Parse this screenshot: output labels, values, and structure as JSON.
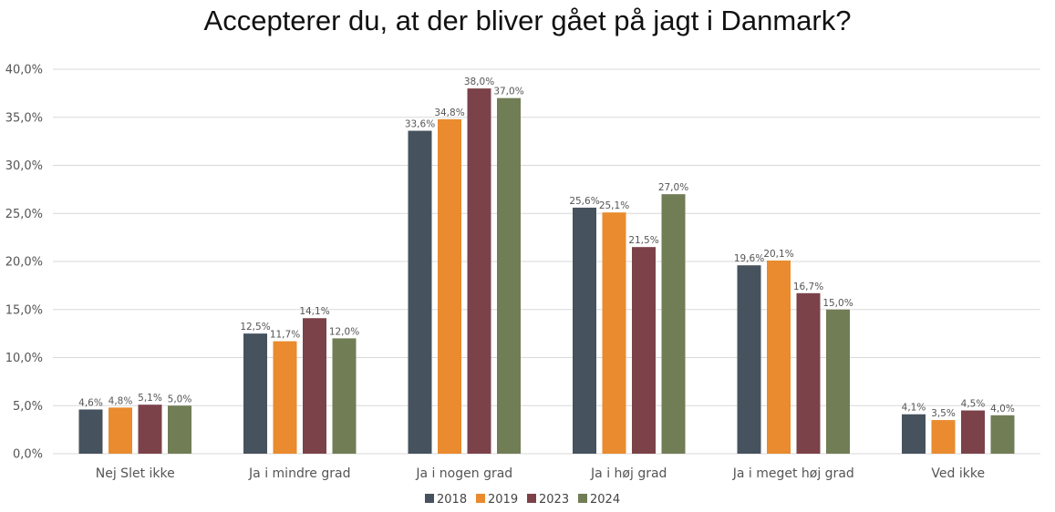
{
  "chart_data": {
    "type": "bar",
    "title": "Accepterer du, at der bliver gået på jagt i Danmark?",
    "categories": [
      "Nej Slet ikke",
      "Ja i mindre grad",
      "Ja i nogen grad",
      "Ja i høj grad",
      "Ja i meget høj grad",
      "Ved ikke"
    ],
    "series": [
      {
        "name": "2018",
        "color": "#46535e",
        "values": [
          4.6,
          12.5,
          33.6,
          25.6,
          19.6,
          4.1
        ],
        "labels": [
          "4,6%",
          "12,5%",
          "33,6%",
          "25,6%",
          "19,6%",
          "4,1%"
        ]
      },
      {
        "name": "2019",
        "color": "#e98b2e",
        "values": [
          4.8,
          11.7,
          34.8,
          25.1,
          20.1,
          3.5
        ],
        "labels": [
          "4,8%",
          "11,7%",
          "34,8%",
          "25,1%",
          "20,1%",
          "3,5%"
        ]
      },
      {
        "name": "2023",
        "color": "#7c4249",
        "values": [
          5.1,
          14.1,
          38.0,
          21.5,
          16.7,
          4.5
        ],
        "labels": [
          "5,1%",
          "14,1%",
          "38,0%",
          "21,5%",
          "16,7%",
          "4,5%"
        ]
      },
      {
        "name": "2024",
        "color": "#717d55",
        "values": [
          5.0,
          12.0,
          37.0,
          27.0,
          15.0,
          4.0
        ],
        "labels": [
          "5,0%",
          "12,0%",
          "37,0%",
          "27,0%",
          "15,0%",
          "4,0%"
        ]
      }
    ],
    "ylim": [
      0,
      40
    ],
    "yticks": [
      0,
      5,
      10,
      15,
      20,
      25,
      30,
      35,
      40
    ],
    "ytick_labels": [
      "0,0%",
      "5,0%",
      "10,0%",
      "15,0%",
      "20,0%",
      "25,0%",
      "30,0%",
      "35,0%",
      "40,0%"
    ],
    "grid": true,
    "legend_position": "bottom"
  }
}
